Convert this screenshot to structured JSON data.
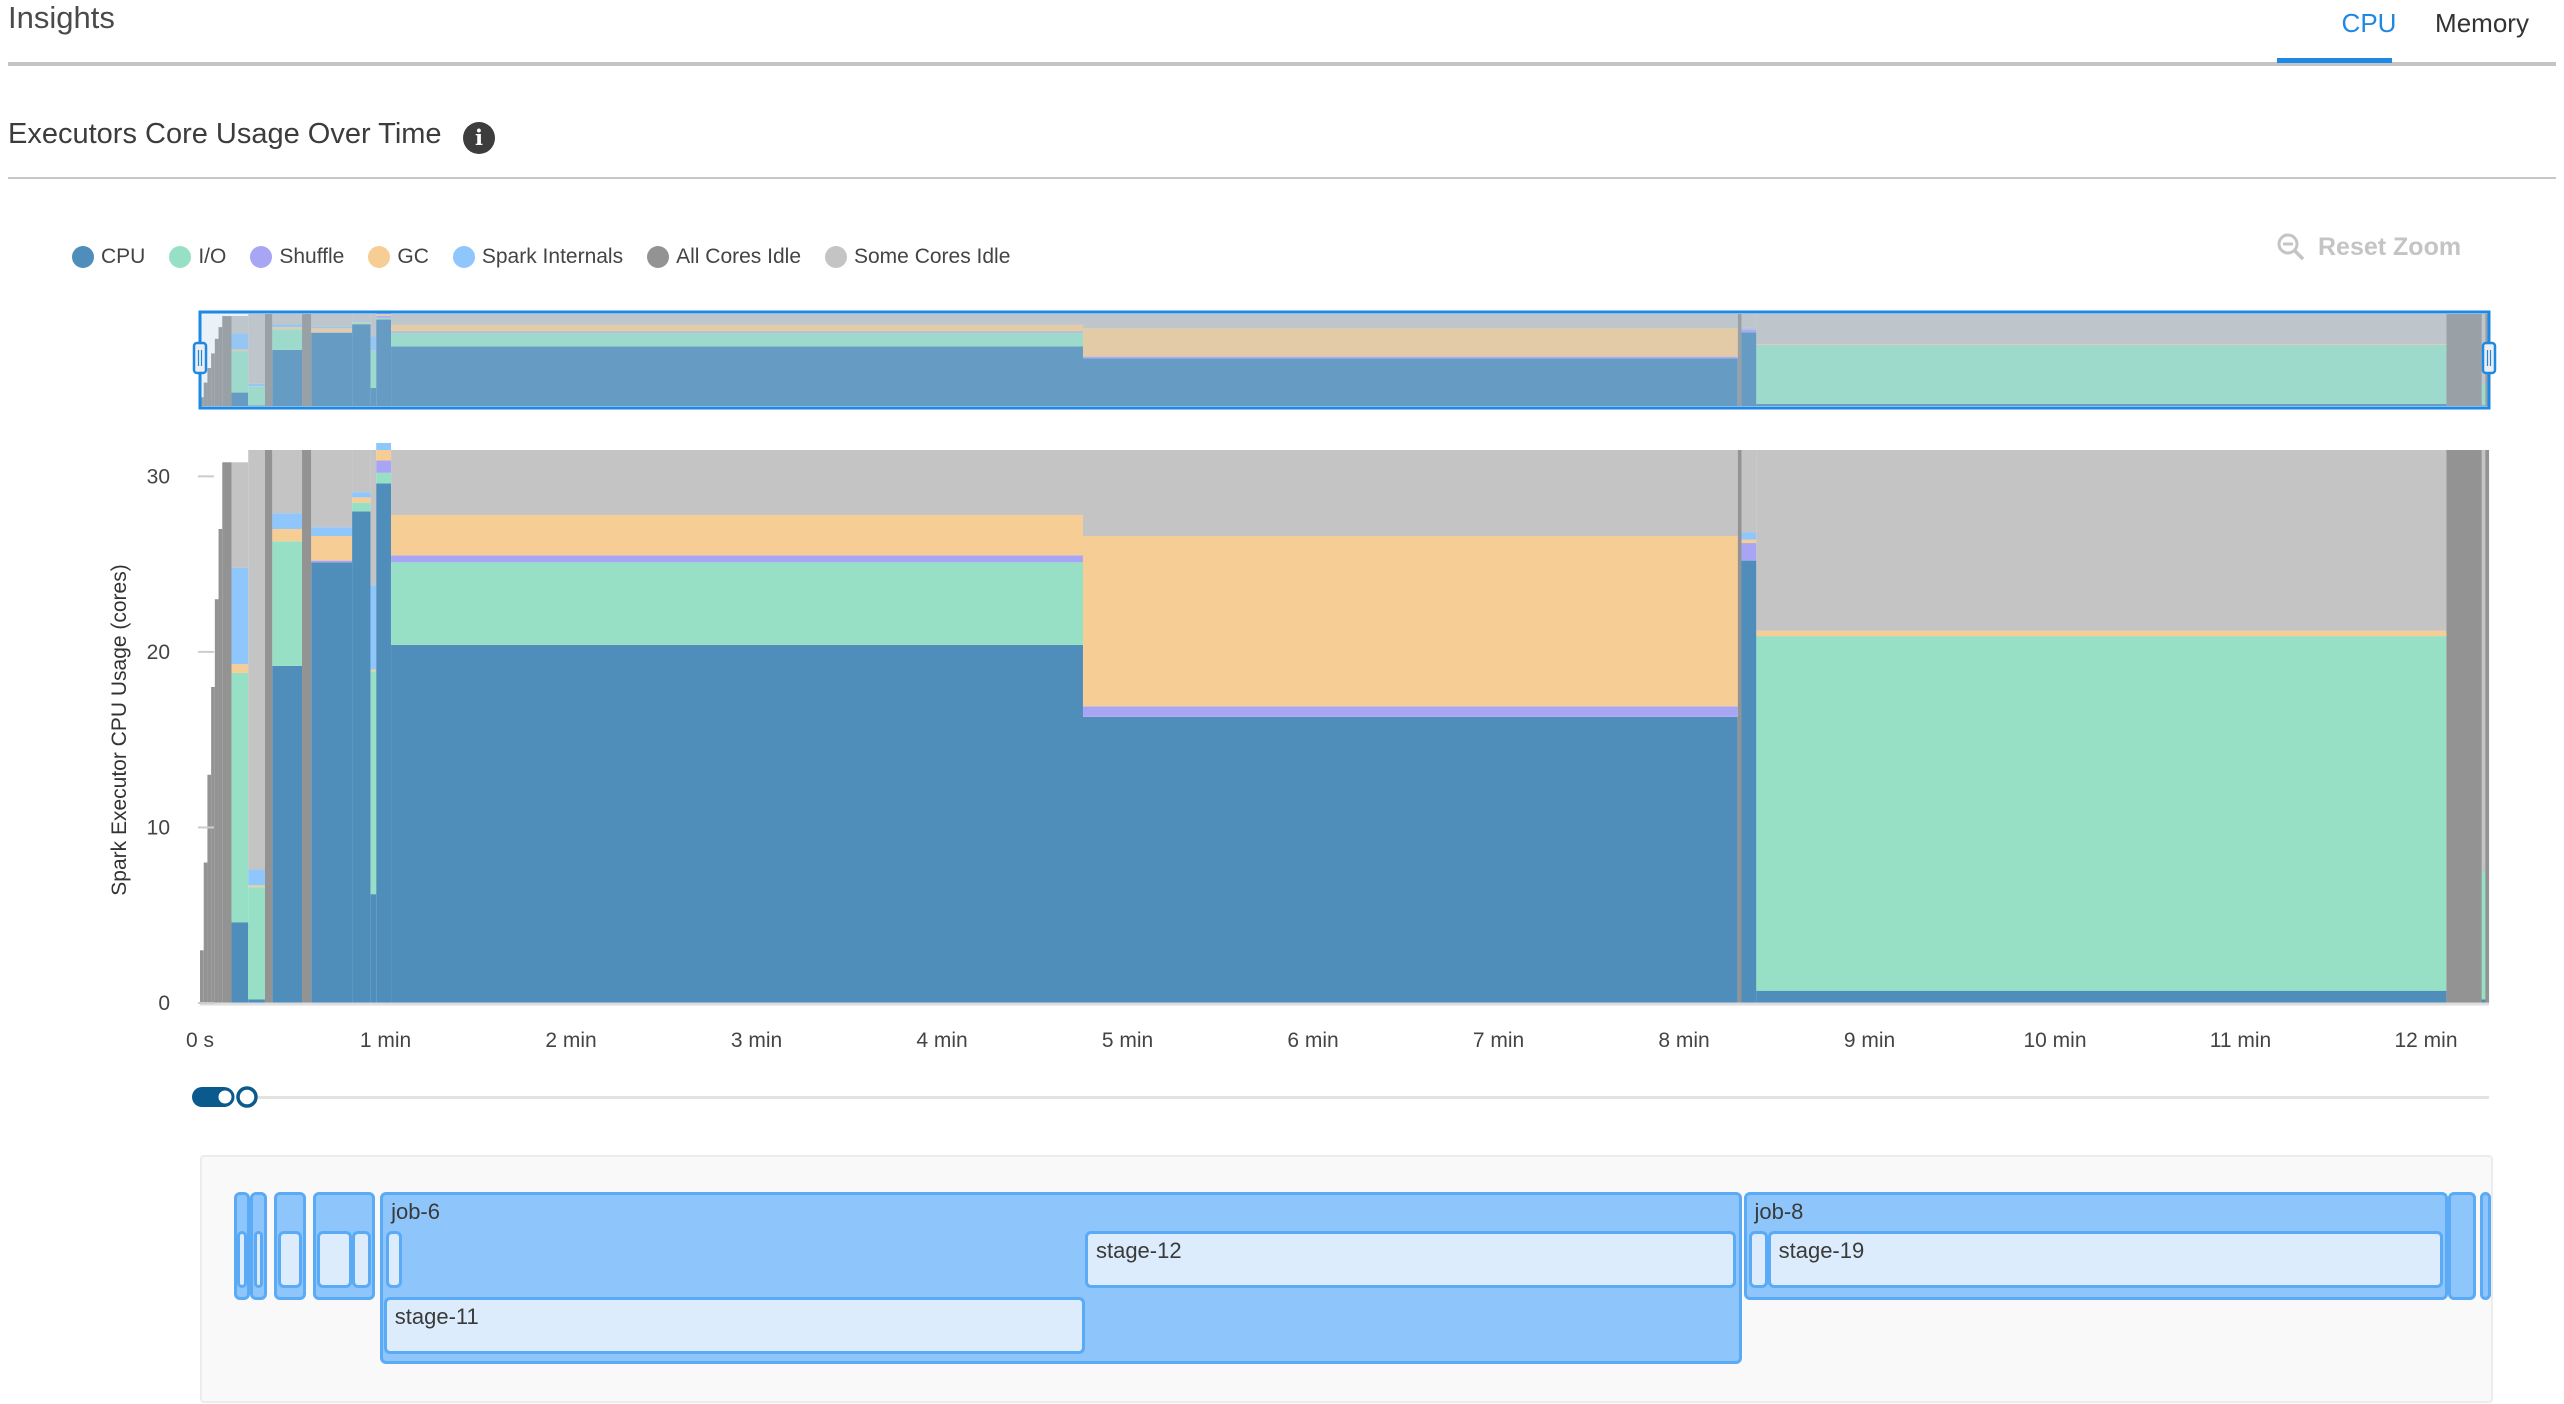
{
  "header": {
    "title": "Insights",
    "tabs": [
      {
        "label": "CPU",
        "active": true
      },
      {
        "label": "Memory",
        "active": false
      }
    ]
  },
  "section": {
    "title": "Executors Core Usage Over Time",
    "info_icon": "info-icon"
  },
  "reset_zoom": {
    "label": "Reset Zoom",
    "icon": "zoom-out-icon"
  },
  "legend": [
    {
      "label": "CPU",
      "color": "#4f8dbb"
    },
    {
      "label": "I/O",
      "color": "#98e0c5"
    },
    {
      "label": "Shuffle",
      "color": "#a9a5f5"
    },
    {
      "label": "GC",
      "color": "#f6cd94"
    },
    {
      "label": "Spark Internals",
      "color": "#8fc6fb"
    },
    {
      "label": "All Cores Idle",
      "color": "#939393"
    },
    {
      "label": "Some Cores Idle",
      "color": "#c4c4c4"
    }
  ],
  "chart_data": {
    "type": "area",
    "stacked": true,
    "ylabel": "Spark Executor CPU Usage (cores)",
    "xlabel": "",
    "ylim": [
      0,
      31.5
    ],
    "xlim_min": [
      0,
      12.34
    ],
    "y_ticks": [
      "0",
      "10",
      "20",
      "30"
    ],
    "y_tick_values": [
      0,
      10,
      20,
      30
    ],
    "x_ticks": [
      "0 s",
      "1 min",
      "2 min",
      "3 min",
      "4 min",
      "5 min",
      "6 min",
      "7 min",
      "8 min",
      "9 min",
      "10 min",
      "11 min",
      "12 min"
    ],
    "x_tick_values_min": [
      0,
      1,
      2,
      3,
      4,
      5,
      6,
      7,
      8,
      9,
      10,
      11,
      12
    ],
    "grid": false,
    "legend_position": "top-left",
    "series_order": [
      "cpu",
      "io",
      "shuffle",
      "gc",
      "spark"
    ],
    "segments": [
      {
        "t0": 0.0,
        "t1": 0.02,
        "total": 3,
        "all_idle": true
      },
      {
        "t0": 0.02,
        "t1": 0.04,
        "total": 8,
        "all_idle": true
      },
      {
        "t0": 0.04,
        "t1": 0.06,
        "total": 13,
        "all_idle": true
      },
      {
        "t0": 0.06,
        "t1": 0.08,
        "total": 18,
        "all_idle": true
      },
      {
        "t0": 0.08,
        "t1": 0.1,
        "total": 23,
        "all_idle": true
      },
      {
        "t0": 0.1,
        "t1": 0.12,
        "total": 27,
        "all_idle": true
      },
      {
        "t0": 0.12,
        "t1": 0.17,
        "total": 30.8,
        "all_idle": true
      },
      {
        "t0": 0.17,
        "t1": 0.26,
        "total": 30.8,
        "cpu": 4.6,
        "io": 14.2,
        "shuffle": 0,
        "gc": 0.5,
        "spark": 5.5
      },
      {
        "t0": 0.26,
        "t1": 0.35,
        "total": 31.5,
        "cpu": 0.2,
        "io": 6.4,
        "shuffle": 0,
        "gc": 0.1,
        "spark": 0.9
      },
      {
        "t0": 0.35,
        "t1": 0.39,
        "total": 31.5,
        "all_idle": true
      },
      {
        "t0": 0.39,
        "t1": 0.55,
        "total": 31.5,
        "cpu": 19.2,
        "io": 7.1,
        "shuffle": 0,
        "gc": 0.7,
        "spark": 0.9
      },
      {
        "t0": 0.55,
        "t1": 0.6,
        "total": 31.5,
        "all_idle": true
      },
      {
        "t0": 0.6,
        "t1": 0.82,
        "total": 31.5,
        "cpu": 25.1,
        "io": 0,
        "shuffle": 0.1,
        "gc": 1.4,
        "spark": 0.5
      },
      {
        "t0": 0.82,
        "t1": 0.92,
        "total": 31.5,
        "cpu": 28.0,
        "io": 0.5,
        "shuffle": 0,
        "gc": 0.3,
        "spark": 0.3
      },
      {
        "t0": 0.92,
        "t1": 0.95,
        "total": 31.5,
        "cpu": 6.2,
        "io": 12.7,
        "shuffle": 0,
        "gc": 0.1,
        "spark": 4.8
      },
      {
        "t0": 0.95,
        "t1": 1.03,
        "total": 31.9,
        "cpu": 29.6,
        "io": 0.6,
        "shuffle": 0.7,
        "gc": 0.6,
        "spark": 0.4
      },
      {
        "t0": 1.03,
        "t1": 4.76,
        "total": 31.5,
        "cpu": 20.4,
        "io": 4.7,
        "shuffle": 0.4,
        "gc": 2.3,
        "spark": 0
      },
      {
        "t0": 4.76,
        "t1": 8.29,
        "total": 31.5,
        "cpu": 16.3,
        "io": 0,
        "shuffle": 0.6,
        "gc": 9.7,
        "spark": 0
      },
      {
        "t0": 8.29,
        "t1": 8.31,
        "total": 31.5,
        "all_idle": true
      },
      {
        "t0": 8.31,
        "t1": 8.39,
        "total": 31.5,
        "cpu": 25.2,
        "io": 0,
        "shuffle": 1.0,
        "gc": 0.2,
        "spark": 0.4
      },
      {
        "t0": 8.39,
        "t1": 12.11,
        "total": 31.5,
        "cpu": 0.7,
        "io": 20.2,
        "shuffle": 0,
        "gc": 0.3,
        "spark": 0
      },
      {
        "t0": 12.11,
        "t1": 12.34,
        "total": 31.5,
        "all_idle": true
      },
      {
        "t0": 12.3,
        "t1": 12.32,
        "total": 31.5,
        "cpu": 0.2,
        "io": 7.3,
        "shuffle": 0,
        "gc": 0,
        "spark": 0
      }
    ]
  },
  "timeline": {
    "jobs": [
      {
        "label": "",
        "t0": 0.17,
        "t1": 0.26,
        "stages": [
          {
            "label": "",
            "t0": 0.19,
            "t1": 0.24,
            "row": 0
          }
        ]
      },
      {
        "label": "",
        "t0": 0.26,
        "t1": 0.35,
        "stages": [
          {
            "label": "",
            "t0": 0.28,
            "t1": 0.33,
            "row": 0
          }
        ]
      },
      {
        "label": "",
        "t0": 0.39,
        "t1": 0.56,
        "stages": [
          {
            "label": "",
            "t0": 0.41,
            "t1": 0.54,
            "row": 0
          }
        ]
      },
      {
        "label": "",
        "t0": 0.6,
        "t1": 0.93,
        "stages": [
          {
            "label": "",
            "t0": 0.62,
            "t1": 0.81,
            "row": 0
          },
          {
            "label": "",
            "t0": 0.81,
            "t1": 0.91,
            "row": 0
          }
        ]
      },
      {
        "label": "job-6",
        "t0": 0.96,
        "t1": 8.3,
        "stages": [
          {
            "label": "",
            "t0": 0.99,
            "t1": 1.08,
            "row": 0
          },
          {
            "label": "stage-12",
            "t0": 4.76,
            "t1": 8.27,
            "row": 0
          },
          {
            "label": "stage-11",
            "t0": 0.98,
            "t1": 4.76,
            "row": 1
          }
        ]
      },
      {
        "label": "job-8",
        "t0": 8.31,
        "t1": 12.11,
        "stages": [
          {
            "label": "",
            "t0": 8.34,
            "t1": 8.44,
            "row": 0
          },
          {
            "label": "stage-19",
            "t0": 8.44,
            "t1": 12.08,
            "row": 0
          }
        ]
      },
      {
        "label": "",
        "t0": 12.11,
        "t1": 12.26,
        "stages": []
      },
      {
        "label": "",
        "t0": 12.28,
        "t1": 12.34,
        "stages": []
      }
    ]
  }
}
